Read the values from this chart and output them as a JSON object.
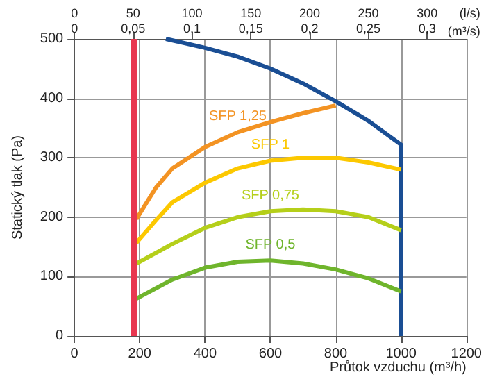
{
  "chart_data": {
    "type": "line",
    "xlabel": "Průtok vzduchu (m³/h)",
    "ylabel": "Statický tlak (Pa)",
    "x2label": "(l/s)",
    "annotations": [
      "(m³/s)",
      "0",
      "0,05",
      "0,1",
      "0,15",
      "0,2",
      "0,25",
      "0,3"
    ],
    "xlim": [
      0,
      1200
    ],
    "xticks": [
      0,
      200,
      400,
      600,
      800,
      1000,
      1200
    ],
    "x2lim": [
      0,
      333.33
    ],
    "x2ticks": [
      0,
      50,
      100,
      150,
      200,
      250,
      300
    ],
    "ylim": [
      0,
      500
    ],
    "yticks": [
      0,
      100,
      200,
      300,
      400,
      500
    ],
    "grid": true,
    "ref_lines": [
      {
        "axis": "x",
        "value": 180,
        "color": "#e8364f"
      }
    ],
    "series": [
      {
        "color": "#1a4e94",
        "x": [
          280,
          400,
          500,
          600,
          700,
          800,
          900,
          1000,
          1000
        ],
        "values": [
          500,
          485,
          470,
          450,
          425,
          395,
          362,
          322,
          0
        ]
      },
      {
        "name": "SFP 1,25",
        "color": "#f39323",
        "x": [
          190,
          250,
          300,
          400,
          500,
          600,
          700,
          800
        ],
        "values": [
          197,
          250,
          282,
          318,
          343,
          360,
          375,
          388
        ]
      },
      {
        "name": "SFP 1",
        "color": "#fcc800",
        "x": [
          190,
          250,
          300,
          400,
          500,
          600,
          700,
          800,
          900,
          1000
        ],
        "values": [
          157,
          195,
          225,
          258,
          282,
          295,
          300,
          300,
          292,
          280
        ]
      },
      {
        "name": "SFP 0,75",
        "color": "#b5cf1a",
        "x": [
          190,
          300,
          400,
          500,
          600,
          700,
          800,
          900,
          1000
        ],
        "values": [
          122,
          155,
          182,
          200,
          210,
          213,
          210,
          200,
          178
        ]
      },
      {
        "name": "SFP 0,5",
        "color": "#6fb52c",
        "x": [
          190,
          300,
          400,
          500,
          600,
          700,
          800,
          900,
          1000
        ],
        "values": [
          63,
          95,
          115,
          125,
          127,
          122,
          112,
          97,
          75
        ]
      }
    ]
  }
}
